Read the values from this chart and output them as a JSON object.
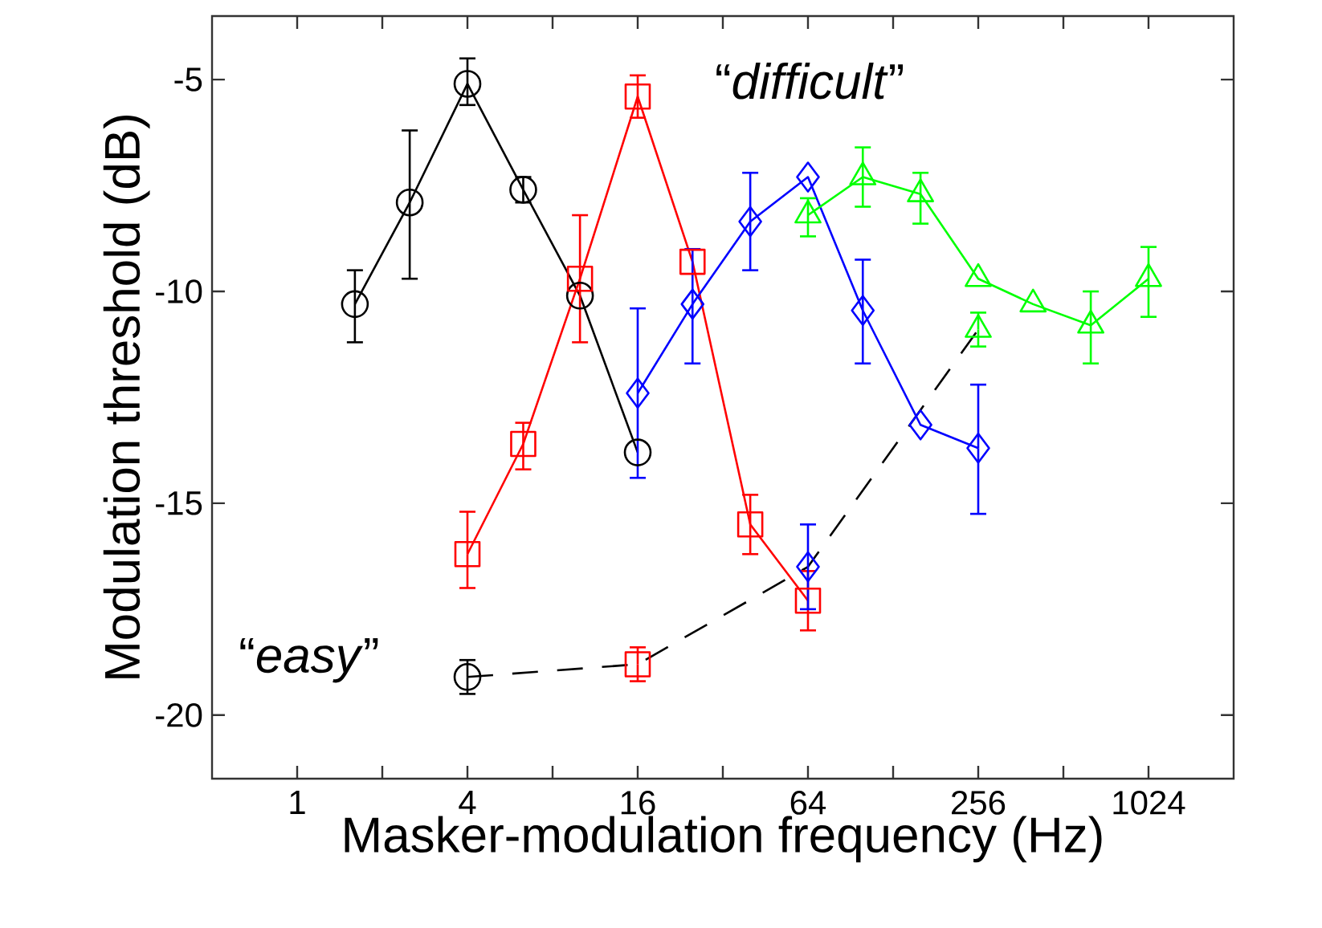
{
  "chart_data": {
    "type": "line",
    "xlabel": "Masker-modulation frequency (Hz)",
    "ylabel": "Modulation threshold (dB)",
    "log": "x",
    "xlim": [
      0.5,
      2048
    ],
    "ylim": [
      -21.5,
      -3.5
    ],
    "xticks": [
      1,
      {
        "value": 2,
        "label": null
      },
      4,
      {
        "value": 8,
        "label": null
      },
      16,
      {
        "value": 32,
        "label": null
      },
      64,
      {
        "value": 128,
        "label": null
      },
      256,
      {
        "value": 512,
        "label": null
      },
      1024
    ],
    "yticks": [
      -20,
      -15,
      -10,
      -5
    ],
    "annotations": [
      "“*difficult*”",
      "“*easy*”"
    ],
    "series": [
      {
        "color": "#000000",
        "line_style": "dashed",
        "x": [
          4,
          16,
          64,
          256
        ],
        "values": [
          -19.1,
          -18.8,
          -16.5,
          -10.9
        ]
      },
      {
        "color": "#000000",
        "marker": "circle",
        "x": [
          1.6,
          2.5,
          4,
          6.3,
          10,
          16
        ],
        "values": [
          -10.3,
          -7.9,
          -5.1,
          -7.6,
          -10.1,
          -13.8
        ],
        "errors": [
          [
            -11.2,
            -9.5
          ],
          [
            -9.7,
            -6.2
          ],
          [
            -5.6,
            -4.5
          ],
          [
            -7.9,
            -7.3
          ],
          null,
          null
        ]
      },
      {
        "color": "#ff0000",
        "marker": "square",
        "x": [
          4,
          6.3,
          10,
          16,
          25,
          40,
          64
        ],
        "values": [
          -16.2,
          -13.6,
          -9.7,
          -5.4,
          -9.3,
          -15.5,
          -17.3
        ],
        "errors": [
          [
            -17.0,
            -15.2
          ],
          [
            -14.2,
            -13.1
          ],
          [
            -11.2,
            -8.2
          ],
          [
            -5.9,
            -4.9
          ],
          null,
          [
            -16.2,
            -14.8
          ],
          [
            -18.0,
            -16.6
          ]
        ]
      },
      {
        "color": "#0000ff",
        "marker": "diamond",
        "x": [
          16,
          25,
          40,
          64,
          100,
          160,
          256
        ],
        "values": [
          -12.4,
          -10.3,
          -8.35,
          -7.3,
          -10.45,
          -13.15,
          -13.7
        ],
        "errors": [
          [
            -14.4,
            -10.4
          ],
          [
            -11.7,
            -9.0
          ],
          [
            -9.5,
            -7.2
          ],
          null,
          [
            -11.7,
            -9.25
          ],
          null,
          [
            -15.25,
            -12.2
          ]
        ]
      },
      {
        "color": "#00ff00",
        "marker": "triangle",
        "x": [
          64,
          100,
          160,
          256,
          400,
          640,
          1024
        ],
        "values": [
          -8.2,
          -7.3,
          -7.7,
          -9.7,
          -10.3,
          -10.8,
          -9.7
        ],
        "errors": [
          [
            -8.7,
            -7.8
          ],
          [
            -8.0,
            -6.6
          ],
          [
            -8.4,
            -7.2
          ],
          null,
          null,
          [
            -11.7,
            -10.0
          ],
          [
            -10.6,
            -8.95
          ]
        ]
      },
      {
        "type": "scatter",
        "color": "#000000",
        "marker": "circle",
        "x": [
          4
        ],
        "values": [
          -19.1
        ],
        "errors": [
          0.4
        ]
      },
      {
        "type": "scatter",
        "color": "#ff0000",
        "marker": "square",
        "x": [
          16
        ],
        "values": [
          -18.8
        ],
        "errors": [
          0.4
        ]
      },
      {
        "type": "scatter",
        "color": "#0000ff",
        "marker": "diamond",
        "x": [
          64
        ],
        "values": [
          -16.5
        ],
        "errors": [
          [
            -17.5,
            -15.5
          ]
        ]
      },
      {
        "type": "scatter",
        "color": "#00ff00",
        "marker": "triangle",
        "x": [
          256
        ],
        "values": [
          -10.9
        ],
        "errors": [
          0.4
        ]
      }
    ]
  }
}
